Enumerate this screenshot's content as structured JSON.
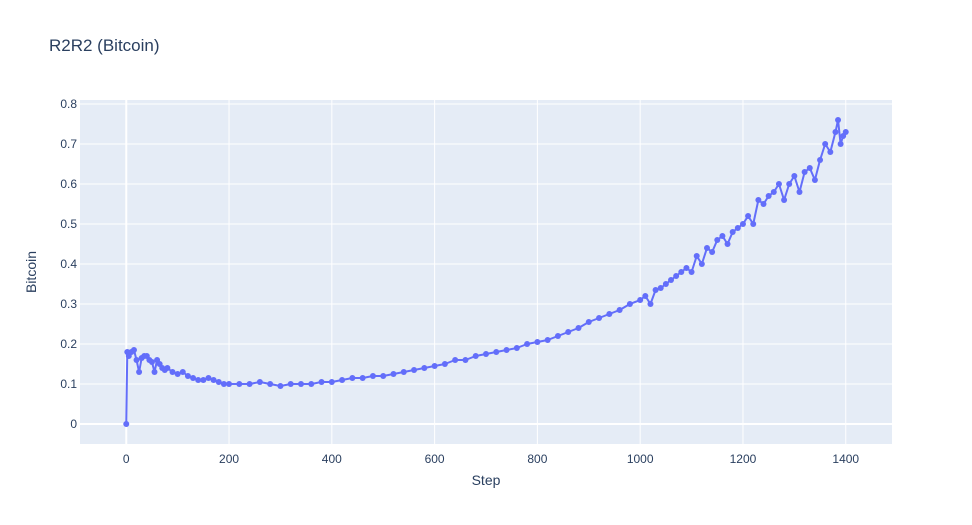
{
  "chart_data": {
    "type": "line",
    "mode": "lines+markers",
    "title": "R2R2 (Bitcoin)",
    "xlabel": "Step",
    "ylabel": "Bitcoin",
    "xlim": [
      -90,
      1490
    ],
    "ylim": [
      -0.05,
      0.81
    ],
    "x_ticks": [
      0,
      200,
      400,
      600,
      800,
      1000,
      1200,
      1400
    ],
    "y_ticks": [
      0,
      0.1,
      0.2,
      0.3,
      0.4,
      0.5,
      0.6,
      0.7,
      0.8
    ],
    "x_tick_labels": [
      "0",
      "200",
      "400",
      "600",
      "800",
      "1000",
      "1200",
      "1400"
    ],
    "y_tick_labels": [
      "0",
      "0.1",
      "0.2",
      "0.3",
      "0.4",
      "0.5",
      "0.6",
      "0.7",
      "0.8"
    ],
    "grid": true,
    "legend": "none",
    "colors": {
      "series": "#636efa",
      "plot_bg": "#e5ecf6",
      "grid": "#ffffff",
      "text": "#2a3f5f"
    },
    "series": [
      {
        "x": [
          0,
          2,
          5,
          10,
          15,
          20,
          25,
          30,
          35,
          40,
          45,
          50,
          55,
          60,
          65,
          70,
          75,
          80,
          90,
          100,
          110,
          120,
          130,
          140,
          150,
          160,
          170,
          180,
          190,
          200,
          220,
          240,
          260,
          280,
          300,
          320,
          340,
          360,
          380,
          400,
          420,
          440,
          460,
          480,
          500,
          520,
          540,
          560,
          580,
          600,
          620,
          640,
          660,
          680,
          700,
          720,
          740,
          760,
          780,
          800,
          820,
          840,
          860,
          880,
          900,
          920,
          940,
          960,
          980,
          1000,
          1010,
          1020,
          1030,
          1040,
          1050,
          1060,
          1070,
          1080,
          1090,
          1100,
          1110,
          1120,
          1130,
          1140,
          1150,
          1160,
          1170,
          1180,
          1190,
          1200,
          1210,
          1220,
          1230,
          1240,
          1250,
          1260,
          1270,
          1280,
          1290,
          1300,
          1310,
          1320,
          1330,
          1340,
          1350,
          1360,
          1370,
          1380,
          1385,
          1390,
          1395,
          1400
        ],
        "y": [
          0.0,
          0.18,
          0.17,
          0.18,
          0.185,
          0.16,
          0.13,
          0.165,
          0.17,
          0.17,
          0.16,
          0.155,
          0.13,
          0.16,
          0.15,
          0.14,
          0.135,
          0.14,
          0.13,
          0.125,
          0.13,
          0.12,
          0.115,
          0.11,
          0.11,
          0.115,
          0.11,
          0.105,
          0.1,
          0.1,
          0.1,
          0.1,
          0.105,
          0.1,
          0.095,
          0.1,
          0.1,
          0.1,
          0.105,
          0.105,
          0.11,
          0.115,
          0.115,
          0.12,
          0.12,
          0.125,
          0.13,
          0.135,
          0.14,
          0.145,
          0.15,
          0.16,
          0.16,
          0.17,
          0.175,
          0.18,
          0.185,
          0.19,
          0.2,
          0.205,
          0.21,
          0.22,
          0.23,
          0.24,
          0.255,
          0.265,
          0.275,
          0.285,
          0.3,
          0.31,
          0.32,
          0.3,
          0.335,
          0.34,
          0.35,
          0.36,
          0.37,
          0.38,
          0.39,
          0.38,
          0.42,
          0.4,
          0.44,
          0.43,
          0.46,
          0.47,
          0.45,
          0.48,
          0.49,
          0.5,
          0.52,
          0.5,
          0.56,
          0.55,
          0.57,
          0.58,
          0.6,
          0.56,
          0.6,
          0.62,
          0.58,
          0.63,
          0.64,
          0.61,
          0.66,
          0.7,
          0.68,
          0.73,
          0.76,
          0.7,
          0.72,
          0.73
        ]
      }
    ]
  }
}
